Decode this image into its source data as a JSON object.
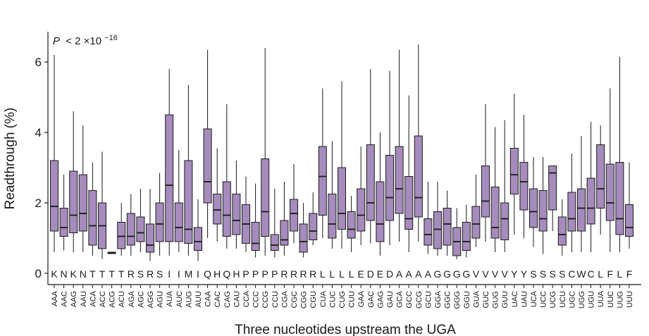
{
  "chart_data": {
    "type": "box",
    "annotation": {
      "prefix": "P",
      "text": "< 2 ×10",
      "exponent": "−16"
    },
    "ylabel": "Readthrough (%)",
    "xlabel": "Three nucleotides upstream the UGA",
    "ylim": [
      0,
      6.8
    ],
    "yticks": [
      0,
      2,
      4,
      6
    ],
    "box_color": "#a58cbc",
    "box_stroke": "#1a1a1a",
    "codons": [
      "AAA",
      "AAC",
      "AAG",
      "AAU",
      "ACA",
      "ACC",
      "ACG",
      "ACU",
      "AGA",
      "AGC",
      "AGG",
      "AGU",
      "AUA",
      "AUC",
      "AUG",
      "AUU",
      "CAA",
      "CAC",
      "CAG",
      "CAU",
      "CCA",
      "CCC",
      "CCG",
      "CCU",
      "CGA",
      "CGC",
      "CGG",
      "CGU",
      "CUA",
      "CUC",
      "CUG",
      "CUU",
      "GAA",
      "GAC",
      "GAG",
      "GAU",
      "GCA",
      "GCC",
      "GCG",
      "GCU",
      "GGA",
      "GGC",
      "GGG",
      "GGU",
      "GUA",
      "GUC",
      "GUG",
      "GUU",
      "UAC",
      "UAU",
      "UCA",
      "UCC",
      "UCG",
      "UCU",
      "UGC",
      "UGG",
      "UGU",
      "UUA",
      "UUC",
      "UUG",
      "UUU"
    ],
    "amino_acids": [
      "K",
      "N",
      "K",
      "N",
      "T",
      "T",
      "T",
      "T",
      "R",
      "S",
      "R",
      "S",
      "I",
      "I",
      "M",
      "I",
      "Q",
      "H",
      "Q",
      "H",
      "P",
      "P",
      "P",
      "P",
      "R",
      "R",
      "R",
      "R",
      "L",
      "L",
      "L",
      "L",
      "E",
      "D",
      "E",
      "D",
      "A",
      "A",
      "A",
      "A",
      "G",
      "G",
      "G",
      "G",
      "V",
      "V",
      "V",
      "V",
      "Y",
      "Y",
      "S",
      "S",
      "S",
      "S",
      "C",
      "W",
      "C",
      "L",
      "F",
      "L",
      "F"
    ],
    "boxes": [
      {
        "min": 0.6,
        "q1": 1.2,
        "median": 1.9,
        "q3": 3.2,
        "max": 6.2
      },
      {
        "min": 0.65,
        "q1": 1.05,
        "median": 1.3,
        "q3": 1.85,
        "max": 2.8
      },
      {
        "min": 0.6,
        "q1": 1.15,
        "median": 1.65,
        "q3": 2.9,
        "max": 4.6
      },
      {
        "min": 0.6,
        "q1": 1.2,
        "median": 1.7,
        "q3": 2.8,
        "max": 4.2
      },
      {
        "min": 0.5,
        "q1": 0.8,
        "median": 1.35,
        "q3": 2.35,
        "max": 3.15
      },
      {
        "min": 0.4,
        "q1": 0.7,
        "median": 1.35,
        "q3": 2.0,
        "max": 3.45
      },
      {
        "min": 0.56,
        "q1": 0.56,
        "median": 0.58,
        "q3": 0.6,
        "max": 0.6
      },
      {
        "min": 0.5,
        "q1": 0.7,
        "median": 1.05,
        "q3": 1.45,
        "max": 2.0
      },
      {
        "min": 0.5,
        "q1": 0.8,
        "median": 1.05,
        "q3": 1.7,
        "max": 2.25
      },
      {
        "min": 0.6,
        "q1": 0.9,
        "median": 1.15,
        "q3": 1.6,
        "max": 2.4
      },
      {
        "min": 0.35,
        "q1": 0.6,
        "median": 0.8,
        "q3": 1.4,
        "max": 2.4
      },
      {
        "min": 0.5,
        "q1": 0.9,
        "median": 1.4,
        "q3": 2.0,
        "max": 2.85
      },
      {
        "min": 0.5,
        "q1": 0.9,
        "median": 2.5,
        "q3": 4.5,
        "max": 5.8
      },
      {
        "min": 0.6,
        "q1": 0.9,
        "median": 1.3,
        "q3": 2.0,
        "max": 3.5
      },
      {
        "min": 0.5,
        "q1": 0.85,
        "median": 1.25,
        "q3": 3.2,
        "max": 5.35
      },
      {
        "min": 0.35,
        "q1": 0.65,
        "median": 0.9,
        "q3": 1.3,
        "max": 2.1
      },
      {
        "min": 1.0,
        "q1": 2.0,
        "median": 2.6,
        "q3": 4.1,
        "max": 6.35
      },
      {
        "min": 0.9,
        "q1": 1.4,
        "median": 1.8,
        "q3": 2.25,
        "max": 3.55
      },
      {
        "min": 0.7,
        "q1": 1.05,
        "median": 1.65,
        "q3": 2.6,
        "max": 4.8
      },
      {
        "min": 0.7,
        "q1": 1.1,
        "median": 1.5,
        "q3": 2.25,
        "max": 3.2
      },
      {
        "min": 0.6,
        "q1": 0.85,
        "median": 1.4,
        "q3": 1.95,
        "max": 2.75
      },
      {
        "min": 0.45,
        "q1": 0.65,
        "median": 0.85,
        "q3": 1.45,
        "max": 2.55
      },
      {
        "min": 0.5,
        "q1": 1.05,
        "median": 1.75,
        "q3": 3.25,
        "max": 6.4
      },
      {
        "min": 0.45,
        "q1": 0.65,
        "median": 0.8,
        "q3": 1.1,
        "max": 2.4
      },
      {
        "min": 0.5,
        "q1": 0.8,
        "median": 0.95,
        "q3": 1.5,
        "max": 2.6
      },
      {
        "min": 0.85,
        "q1": 1.2,
        "median": 1.7,
        "q3": 2.1,
        "max": 3.1
      },
      {
        "min": 0.45,
        "q1": 0.6,
        "median": 0.9,
        "q3": 1.4,
        "max": 2.0
      },
      {
        "min": 0.8,
        "q1": 0.95,
        "median": 1.2,
        "q3": 1.7,
        "max": 2.3
      },
      {
        "min": 1.0,
        "q1": 1.65,
        "median": 2.75,
        "q3": 3.6,
        "max": 5.25
      },
      {
        "min": 0.7,
        "q1": 1.0,
        "median": 1.4,
        "q3": 2.25,
        "max": 3.75
      },
      {
        "min": 0.7,
        "q1": 1.25,
        "median": 1.7,
        "q3": 3.0,
        "max": 5.45
      },
      {
        "min": 0.6,
        "q1": 1.0,
        "median": 1.25,
        "q3": 1.75,
        "max": 2.2
      },
      {
        "min": 0.8,
        "q1": 1.2,
        "median": 1.65,
        "q3": 2.4,
        "max": 3.6
      },
      {
        "min": 0.85,
        "q1": 1.5,
        "median": 2.0,
        "q3": 3.65,
        "max": 5.8
      },
      {
        "min": 0.5,
        "q1": 0.9,
        "median": 1.4,
        "q3": 2.6,
        "max": 4.0
      },
      {
        "min": 0.8,
        "q1": 1.5,
        "median": 2.15,
        "q3": 3.35,
        "max": 5.75
      },
      {
        "min": 0.9,
        "q1": 1.7,
        "median": 2.4,
        "q3": 3.6,
        "max": 6.35
      },
      {
        "min": 0.6,
        "q1": 1.25,
        "median": 1.55,
        "q3": 2.75,
        "max": 5.05
      },
      {
        "min": 0.9,
        "q1": 1.6,
        "median": 2.15,
        "q3": 3.9,
        "max": 6.5
      },
      {
        "min": 0.55,
        "q1": 0.8,
        "median": 1.1,
        "q3": 1.55,
        "max": 2.6
      },
      {
        "min": 0.5,
        "q1": 0.7,
        "median": 1.25,
        "q3": 1.75,
        "max": 2.6
      },
      {
        "min": 0.5,
        "q1": 0.8,
        "median": 1.4,
        "q3": 1.85,
        "max": 2.35
      },
      {
        "min": 0.4,
        "q1": 0.5,
        "median": 0.9,
        "q3": 1.3,
        "max": 1.85
      },
      {
        "min": 0.45,
        "q1": 0.65,
        "median": 0.9,
        "q3": 1.45,
        "max": 1.95
      },
      {
        "min": 0.75,
        "q1": 1.0,
        "median": 1.4,
        "q3": 1.9,
        "max": 2.8
      },
      {
        "min": 0.9,
        "q1": 1.6,
        "median": 2.05,
        "q3": 3.05,
        "max": 4.8
      },
      {
        "min": 0.6,
        "q1": 1.0,
        "median": 1.3,
        "q3": 2.45,
        "max": 4.15
      },
      {
        "min": 0.6,
        "q1": 0.95,
        "median": 1.55,
        "q3": 2.0,
        "max": 4.35
      },
      {
        "min": 1.1,
        "q1": 2.25,
        "median": 2.8,
        "q3": 3.55,
        "max": 5.1
      },
      {
        "min": 1.0,
        "q1": 1.8,
        "median": 2.6,
        "q3": 3.15,
        "max": 4.5
      },
      {
        "min": 0.75,
        "q1": 1.3,
        "median": 1.75,
        "q3": 2.4,
        "max": 3.3
      },
      {
        "min": 0.55,
        "q1": 1.2,
        "median": 1.55,
        "q3": 2.35,
        "max": 3.3
      },
      {
        "min": 1.2,
        "q1": 1.8,
        "median": 2.85,
        "q3": 3.05,
        "max": 3.05
      },
      {
        "min": 0.5,
        "q1": 0.8,
        "median": 1.1,
        "q3": 1.6,
        "max": 2.1
      },
      {
        "min": 0.6,
        "q1": 1.2,
        "median": 1.55,
        "q3": 2.3,
        "max": 3.4
      },
      {
        "min": 0.6,
        "q1": 1.2,
        "median": 1.85,
        "q3": 2.4,
        "max": 3.9
      },
      {
        "min": 0.6,
        "q1": 1.4,
        "median": 1.85,
        "q3": 2.7,
        "max": 4.3
      },
      {
        "min": 1.1,
        "q1": 1.85,
        "median": 2.4,
        "q3": 3.65,
        "max": 4.2
      },
      {
        "min": 0.6,
        "q1": 1.5,
        "median": 2.0,
        "q3": 3.1,
        "max": 5.25
      },
      {
        "min": 0.6,
        "q1": 1.1,
        "median": 1.55,
        "q3": 3.15,
        "max": 6.15
      },
      {
        "min": 0.7,
        "q1": 1.05,
        "median": 1.3,
        "q3": 1.95,
        "max": 3.15
      }
    ]
  }
}
